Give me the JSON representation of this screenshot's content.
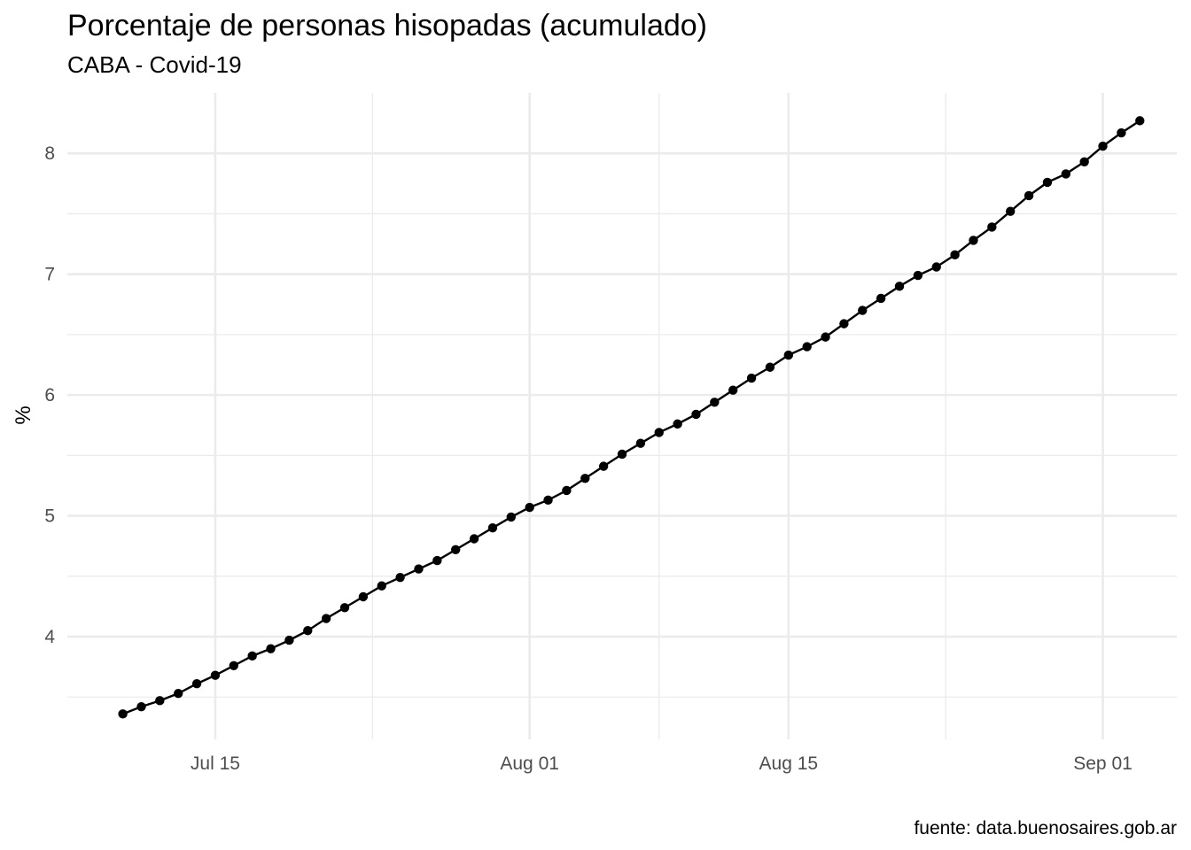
{
  "chart_data": {
    "type": "line",
    "title": "Porcentaje de personas hisopadas (acumulado)",
    "subtitle": "CABA - Covid-19",
    "xlabel": "",
    "ylabel": "%",
    "caption": "fuente: data.buenosaires.gob.ar",
    "x_start_date": "2020-07-10",
    "x_ticks": [
      {
        "date": "2020-07-15",
        "label": "Jul 15"
      },
      {
        "date": "2020-08-01",
        "label": "Aug 01"
      },
      {
        "date": "2020-08-15",
        "label": "Aug 15"
      },
      {
        "date": "2020-09-01",
        "label": "Sep 01"
      }
    ],
    "y_ticks": [
      4,
      5,
      6,
      7,
      8
    ],
    "xlim": [
      "2020-07-07",
      "2020-09-05"
    ],
    "ylim": [
      3.15,
      8.5
    ],
    "grid": true,
    "series_color": "#000000",
    "y_values": [
      3.36,
      3.42,
      3.47,
      3.53,
      3.61,
      3.68,
      3.76,
      3.84,
      3.9,
      3.97,
      4.05,
      4.15,
      4.24,
      4.33,
      4.42,
      4.49,
      4.56,
      4.63,
      4.72,
      4.81,
      4.9,
      4.99,
      5.07,
      5.13,
      5.21,
      5.31,
      5.41,
      5.51,
      5.6,
      5.69,
      5.76,
      5.84,
      5.94,
      6.04,
      6.14,
      6.23,
      6.33,
      6.4,
      6.48,
      6.59,
      6.7,
      6.8,
      6.9,
      6.99,
      7.06,
      7.16,
      7.28,
      7.39,
      7.52,
      7.65,
      7.76,
      7.83,
      7.93,
      8.06,
      8.17,
      8.27
    ]
  }
}
